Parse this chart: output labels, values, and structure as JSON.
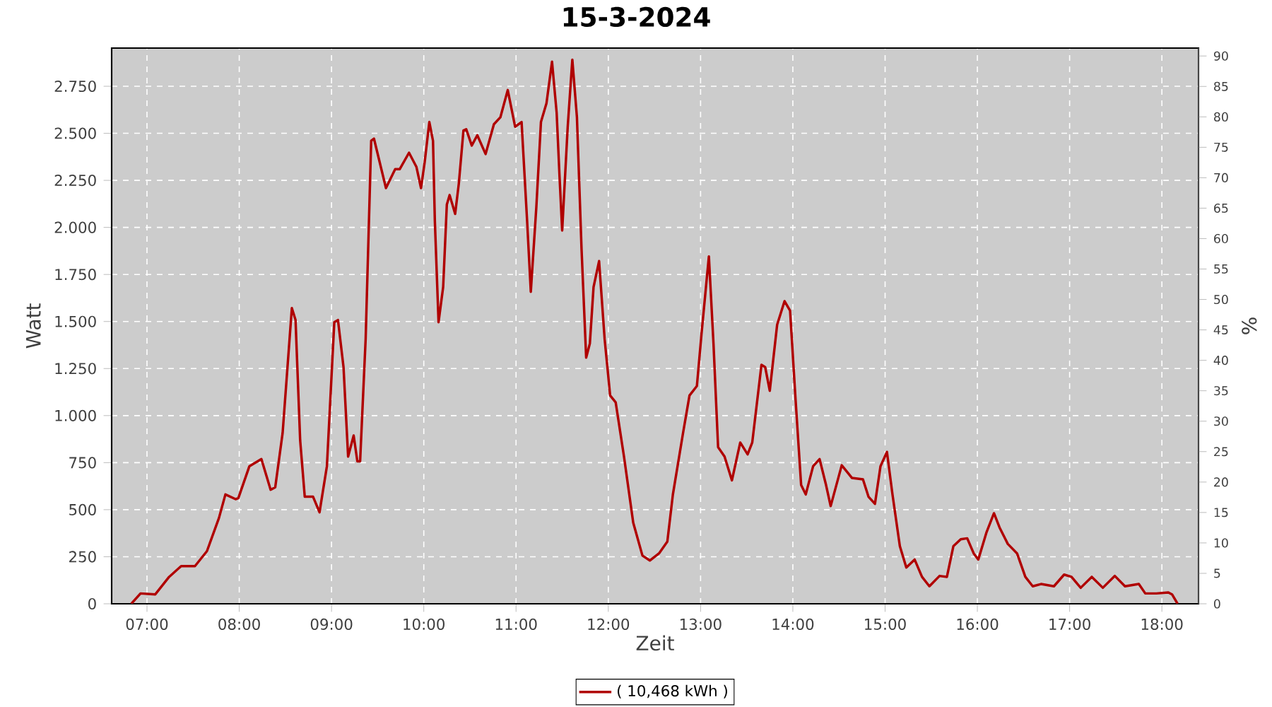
{
  "chart_data": {
    "type": "line",
    "title": "15-3-2024",
    "xlabel": "Zeit",
    "ylabel": "Watt",
    "y2label": "%",
    "xlim": [
      6.617,
      18.397
    ],
    "xticks": [
      {
        "value": 7,
        "label": "07:00"
      },
      {
        "value": 8,
        "label": "08:00"
      },
      {
        "value": 9,
        "label": "09:00"
      },
      {
        "value": 10,
        "label": "10:00"
      },
      {
        "value": 11,
        "label": "11:00"
      },
      {
        "value": 12,
        "label": "12:00"
      },
      {
        "value": 13,
        "label": "13:00"
      },
      {
        "value": 14,
        "label": "14:00"
      },
      {
        "value": 15,
        "label": "15:00"
      },
      {
        "value": 16,
        "label": "16:00"
      },
      {
        "value": 17,
        "label": "17:00"
      },
      {
        "value": 18,
        "label": "18:00"
      }
    ],
    "ylim": [
      0,
      2953
    ],
    "yticks": [
      0,
      250,
      500,
      750,
      {
        "value": 1000,
        "label": "1.000"
      },
      {
        "value": 1250,
        "label": "1.250"
      },
      {
        "value": 1500,
        "label": "1.500"
      },
      {
        "value": 1750,
        "label": "1.750"
      },
      {
        "value": 2000,
        "label": "2.000"
      },
      {
        "value": 2250,
        "label": "2.250"
      },
      {
        "value": 2500,
        "label": "2.500"
      },
      {
        "value": 2750,
        "label": "2.750"
      }
    ],
    "y2lim": [
      0,
      91.3
    ],
    "y2ticks": [
      0,
      5,
      10,
      15,
      20,
      25,
      30,
      35,
      40,
      45,
      50,
      55,
      60,
      65,
      70,
      75,
      80,
      85,
      90
    ],
    "grid": true,
    "legend": "bottom",
    "marker": "none",
    "line_style": "solid",
    "series": [
      {
        "name": "( 10,468 kWh )",
        "color": "#b00000",
        "x": [
          6.83,
          6.93,
          7.09,
          7.24,
          7.37,
          7.52,
          7.65,
          7.78,
          7.85,
          7.96,
          7.99,
          8.11,
          8.24,
          8.34,
          8.39,
          8.47,
          8.57,
          8.61,
          8.66,
          8.71,
          8.8,
          8.87,
          8.95,
          9.03,
          9.07,
          9.13,
          9.18,
          9.24,
          9.28,
          9.31,
          9.37,
          9.43,
          9.46,
          9.59,
          9.69,
          9.74,
          9.84,
          9.92,
          9.97,
          10.01,
          10.06,
          10.1,
          10.12,
          10.16,
          10.21,
          10.25,
          10.28,
          10.34,
          10.38,
          10.43,
          10.46,
          10.52,
          10.58,
          10.67,
          10.76,
          10.83,
          10.91,
          10.99,
          11.06,
          11.12,
          11.16,
          11.22,
          11.27,
          11.33,
          11.39,
          11.44,
          11.47,
          11.5,
          11.56,
          11.61,
          11.66,
          11.71,
          11.76,
          11.8,
          11.84,
          11.9,
          11.96,
          12.02,
          12.08,
          12.17,
          12.27,
          12.37,
          12.45,
          12.55,
          12.64,
          12.7,
          12.81,
          12.88,
          12.96,
          13.01,
          13.09,
          13.14,
          13.19,
          13.26,
          13.34,
          13.43,
          13.51,
          13.56,
          13.66,
          13.7,
          13.75,
          13.83,
          13.91,
          13.97,
          14.03,
          14.09,
          14.14,
          14.22,
          14.29,
          14.36,
          14.41,
          14.53,
          14.64,
          14.76,
          14.82,
          14.89,
          14.95,
          15.02,
          15.08,
          15.16,
          15.23,
          15.32,
          15.4,
          15.48,
          15.59,
          15.67,
          15.74,
          15.82,
          15.89,
          15.96,
          16.01,
          16.1,
          16.18,
          16.24,
          16.33,
          16.43,
          16.52,
          16.6,
          16.69,
          16.83,
          16.94,
          17.02,
          17.12,
          17.24,
          17.36,
          17.49,
          17.6,
          17.75,
          17.82,
          17.94,
          18.07,
          18.11,
          18.17
        ],
        "values": [
          0,
          55,
          50,
          143,
          200,
          200,
          280,
          456,
          581,
          556,
          561,
          731,
          769,
          606,
          619,
          907,
          1571,
          1508,
          869,
          569,
          569,
          486,
          731,
          1496,
          1508,
          1258,
          782,
          894,
          757,
          757,
          1408,
          2460,
          2472,
          2209,
          2310,
          2310,
          2397,
          2322,
          2209,
          2347,
          2560,
          2460,
          2034,
          1496,
          1683,
          2122,
          2172,
          2072,
          2234,
          2515,
          2522,
          2435,
          2490,
          2390,
          2548,
          2585,
          2730,
          2535,
          2560,
          2034,
          1658,
          2109,
          2560,
          2660,
          2881,
          2610,
          2285,
          1984,
          2535,
          2891,
          2585,
          1884,
          1308,
          1383,
          1683,
          1821,
          1408,
          1107,
          1070,
          782,
          431,
          256,
          230,
          268,
          331,
          581,
          907,
          1107,
          1157,
          1433,
          1846,
          1383,
          832,
          782,
          656,
          857,
          794,
          857,
          1270,
          1258,
          1132,
          1483,
          1608,
          1558,
          1082,
          631,
          581,
          731,
          769,
          631,
          519,
          736,
          669,
          661,
          569,
          531,
          731,
          807,
          581,
          306,
          193,
          235,
          143,
          93,
          148,
          143,
          306,
          343,
          348,
          268,
          235,
          381,
          481,
          406,
          318,
          268,
          143,
          93,
          105,
          93,
          155,
          143,
          85,
          143,
          85,
          148,
          93,
          105,
          55,
          55,
          60,
          50,
          0
        ]
      }
    ]
  }
}
